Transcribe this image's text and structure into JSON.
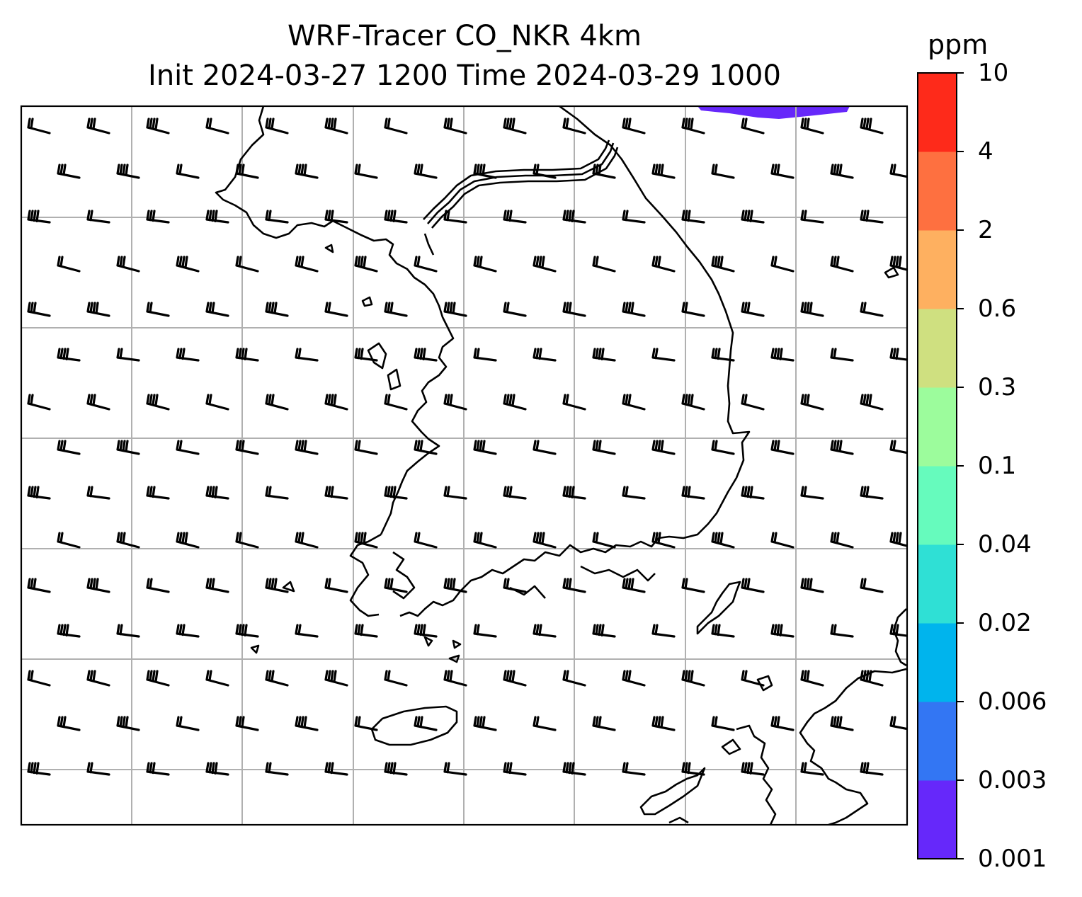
{
  "title": {
    "line1": "WRF-Tracer CO_NKR 4km",
    "line2": "Init 2024-03-27 1200 Time 2024-03-29 1000"
  },
  "colorbar": {
    "unit": "ppm",
    "levels": [
      "0.001",
      "0.003",
      "0.006",
      "0.02",
      "0.04",
      "0.1",
      "0.3",
      "0.6",
      "2",
      "4",
      "10"
    ],
    "colors": [
      "#6628fa",
      "#3376f3",
      "#00b4ed",
      "#2fe0d5",
      "#66fbbd",
      "#9cfc9c",
      "#cfe080",
      "#feb060",
      "#fe7040",
      "#fe2a1a"
    ]
  },
  "map": {
    "background": "#ffffff",
    "coastline_color": "#000000",
    "grid_color": "#b0b0b0",
    "plume_color": "#6628fa",
    "barb_color": "#000000"
  }
}
